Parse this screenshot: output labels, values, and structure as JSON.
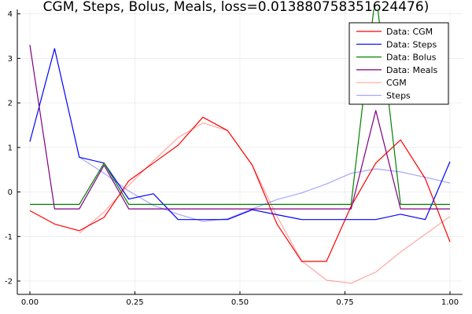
{
  "chart_data": {
    "type": "line",
    "title": "CGM, Steps, Bolus, Meals, loss=0.013880758351624476)",
    "xlabel": "",
    "ylabel": "",
    "xlim": [
      0,
      1
    ],
    "ylim": [
      -2.3,
      4.1
    ],
    "xticks": [
      0.0,
      0.25,
      0.5,
      0.75,
      1.0
    ],
    "xtick_labels": [
      "0.00",
      "0.25",
      "0.50",
      "0.75",
      "1.00"
    ],
    "yticks": [
      -2,
      -1,
      0,
      1,
      2,
      3,
      4
    ],
    "ytick_labels": [
      "-2",
      "-1",
      "0",
      "1",
      "2",
      "3",
      "4"
    ],
    "grid": true,
    "legend_position": "top-right",
    "series": [
      {
        "name": "Data: CGM",
        "color": "#ff0000",
        "opacity": 1,
        "x": [
          0,
          0.0588,
          0.1176,
          0.1765,
          0.2353,
          0.2941,
          0.3529,
          0.4118,
          0.4706,
          0.5294,
          0.5882,
          0.6471,
          0.7059,
          0.7647,
          0.8235,
          0.8824,
          0.9412,
          1.0
        ],
        "y": [
          -0.42,
          -0.72,
          -0.87,
          -0.57,
          0.25,
          0.65,
          1.05,
          1.68,
          1.38,
          0.6,
          -0.72,
          -1.56,
          -1.56,
          -0.32,
          0.65,
          1.17,
          0.3,
          -1.12
        ]
      },
      {
        "name": "Data: Steps",
        "color": "#0000ff",
        "opacity": 1,
        "x": [
          0,
          0.0588,
          0.1176,
          0.1765,
          0.2353,
          0.2941,
          0.3529,
          0.4118,
          0.4706,
          0.5294,
          0.5882,
          0.6471,
          0.7059,
          0.7647,
          0.8235,
          0.8824,
          0.9412,
          1.0
        ],
        "y": [
          1.13,
          3.22,
          0.78,
          0.65,
          -0.16,
          -0.04,
          -0.62,
          -0.62,
          -0.62,
          -0.4,
          -0.51,
          -0.62,
          -0.62,
          -0.62,
          -0.62,
          -0.5,
          -0.62,
          0.68
        ]
      },
      {
        "name": "Data: Bolus",
        "color": "#008000",
        "opacity": 1,
        "x": [
          0,
          0.0588,
          0.1176,
          0.1765,
          0.2353,
          0.2941,
          0.3529,
          0.4118,
          0.4706,
          0.5294,
          0.5882,
          0.6471,
          0.7059,
          0.7647,
          0.8235,
          0.8824,
          0.9412,
          1.0
        ],
        "y": [
          -0.28,
          -0.28,
          -0.28,
          0.65,
          -0.28,
          -0.28,
          -0.28,
          -0.28,
          -0.28,
          -0.28,
          -0.28,
          -0.28,
          -0.28,
          -0.28,
          4.5,
          -0.28,
          -0.28,
          -0.28
        ]
      },
      {
        "name": "Data: Meals",
        "color": "#800080",
        "opacity": 1,
        "x": [
          0,
          0.0588,
          0.1176,
          0.1765,
          0.2353,
          0.2941,
          0.3529,
          0.4118,
          0.4706,
          0.5294,
          0.5882,
          0.6471,
          0.7059,
          0.7647,
          0.8235,
          0.8824,
          0.9412,
          1.0
        ],
        "y": [
          3.3,
          -0.38,
          -0.38,
          0.6,
          -0.38,
          -0.38,
          -0.38,
          -0.38,
          -0.38,
          -0.38,
          -0.38,
          -0.38,
          -0.38,
          -0.38,
          1.83,
          -0.38,
          -0.38,
          -0.38
        ]
      },
      {
        "name": "CGM",
        "color": "#ff0000",
        "opacity": 0.35,
        "x": [
          0.1176,
          0.1765,
          0.2353,
          0.2941,
          0.3529,
          0.4118,
          0.4706,
          0.5294,
          0.5882,
          0.6471,
          0.7059,
          0.7647,
          0.8235,
          0.8824,
          0.9412,
          1.0
        ],
        "y": [
          -0.93,
          -0.45,
          0.15,
          0.7,
          1.22,
          1.55,
          1.38,
          0.6,
          -0.55,
          -1.55,
          -1.98,
          -2.05,
          -1.8,
          -1.35,
          -0.95,
          -0.55
        ]
      },
      {
        "name": "Steps",
        "color": "#0000ff",
        "opacity": 0.35,
        "x": [
          0.1176,
          0.1765,
          0.2353,
          0.2941,
          0.3529,
          0.4118,
          0.4706,
          0.5294,
          0.5882,
          0.6471,
          0.7059,
          0.7647,
          0.8235,
          0.8824,
          0.9412,
          1.0
        ],
        "y": [
          0.78,
          0.42,
          0.02,
          -0.3,
          -0.5,
          -0.66,
          -0.6,
          -0.38,
          -0.17,
          -0.02,
          0.18,
          0.42,
          0.52,
          0.45,
          0.33,
          0.2
        ]
      }
    ]
  }
}
